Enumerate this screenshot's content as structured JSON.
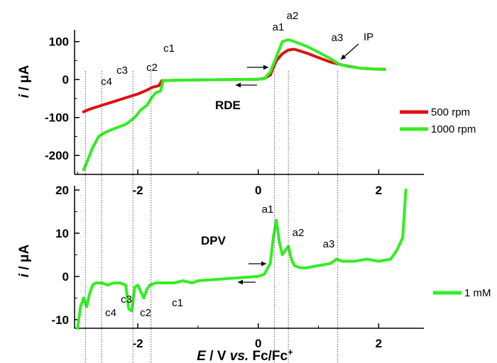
{
  "chart_data": [
    {
      "type": "line",
      "title": "RDE",
      "ylabel_parts": [
        "i",
        " / μA"
      ],
      "xlim": [
        -3.05,
        2.75
      ],
      "ylim": [
        -250,
        120
      ],
      "yticks": [
        100,
        0,
        -100,
        -200
      ],
      "ytick_labels": [
        "100",
        "0",
        "-100",
        "-200"
      ],
      "xticks": [
        -2,
        0,
        2
      ],
      "grid": false,
      "legend_position": "right",
      "series": [
        {
          "name": "500 rpm",
          "color": "#dd1111",
          "x": [
            -2.9,
            -2.8,
            -2.6,
            -2.4,
            -2.2,
            -2.0,
            -1.85,
            -1.75,
            -1.65,
            -1.6,
            -1.4,
            -1.0,
            -0.5,
            0.0,
            0.1,
            0.2,
            0.3,
            0.4,
            0.5,
            0.6,
            0.8,
            1.0,
            1.2,
            1.35,
            1.5,
            1.7,
            1.9,
            2.1
          ],
          "y": [
            -85,
            -78,
            -68,
            -58,
            -48,
            -38,
            -28,
            -20,
            -16,
            -3,
            -2,
            -1,
            0,
            1,
            3,
            12,
            50,
            68,
            78,
            80,
            70,
            58,
            46,
            40,
            35,
            30,
            28,
            27
          ]
        },
        {
          "name": "1000 rpm",
          "color": "#33ee22",
          "x": [
            -2.9,
            -2.85,
            -2.75,
            -2.65,
            -2.55,
            -2.4,
            -2.2,
            -2.05,
            -1.95,
            -1.85,
            -1.78,
            -1.7,
            -1.62,
            -1.58,
            -1.4,
            -1.0,
            -0.5,
            0.0,
            0.1,
            0.2,
            0.3,
            0.4,
            0.5,
            0.6,
            0.8,
            1.0,
            1.2,
            1.35,
            1.5,
            1.7,
            1.9,
            2.1
          ],
          "y": [
            -238,
            -220,
            -180,
            -150,
            -140,
            -130,
            -118,
            -100,
            -80,
            -68,
            -50,
            -35,
            -30,
            -3,
            -2,
            -1,
            0,
            1,
            2,
            20,
            60,
            100,
            105,
            100,
            88,
            72,
            55,
            40,
            34,
            30,
            28,
            26
          ]
        }
      ],
      "annotations": {
        "peaks": [
          {
            "label": "c4",
            "x": -2.87
          },
          {
            "label": "c3",
            "x": -2.6
          },
          {
            "label": "c2",
            "x": -2.08
          },
          {
            "label": "c1",
            "x": -1.78
          },
          {
            "label": "a1",
            "x": 0.27
          },
          {
            "label": "a2",
            "x": 0.5
          },
          {
            "label": "a3",
            "x": 1.32
          }
        ],
        "ip_label": "IP"
      }
    },
    {
      "type": "line",
      "title": "DPV",
      "ylabel_parts": [
        "i",
        " / μA"
      ],
      "xlabel_parts": [
        "E",
        " / V ",
        "vs.",
        " Fc/Fc",
        "+"
      ],
      "xlim": [
        -3.05,
        2.75
      ],
      "ylim": [
        -12,
        20
      ],
      "yticks": [
        20,
        10,
        0,
        -10
      ],
      "ytick_labels": [
        "20",
        "10",
        "0",
        "-10"
      ],
      "xticks": [
        -2,
        0,
        2
      ],
      "xtick_labels": [
        "-2",
        "0",
        "2"
      ],
      "grid": false,
      "legend_position": "right",
      "series": [
        {
          "name": "1 mM",
          "color": "#33ee22",
          "x": [
            -3.0,
            -2.95,
            -2.9,
            -2.85,
            -2.8,
            -2.75,
            -2.7,
            -2.6,
            -2.5,
            -2.4,
            -2.3,
            -2.2,
            -2.15,
            -2.1,
            -2.05,
            -2.0,
            -1.95,
            -1.9,
            -1.85,
            -1.8,
            -1.75,
            -1.7,
            -1.6,
            -1.4,
            -1.25,
            -1.1,
            -1.0,
            -0.5,
            0.0,
            0.1,
            0.2,
            0.25,
            0.3,
            0.35,
            0.4,
            0.45,
            0.5,
            0.55,
            0.6,
            0.7,
            0.8,
            1.0,
            1.2,
            1.3,
            1.4,
            1.6,
            1.8,
            2.0,
            2.2,
            2.3,
            2.4,
            2.45
          ],
          "y": [
            -12,
            -7,
            -5,
            -7,
            -4,
            -2,
            -1.5,
            -1.5,
            -2,
            -1.5,
            -1.5,
            -2,
            -7.5,
            -8,
            -2.5,
            -2,
            -3.5,
            -5,
            -3,
            -2,
            -1.8,
            -1.5,
            -1.5,
            -1.5,
            -1,
            -1.5,
            -1,
            -0.5,
            0,
            0.5,
            3,
            9,
            13,
            8,
            5,
            6,
            7,
            4,
            2.5,
            2,
            2,
            2.5,
            3,
            4,
            3.5,
            3.5,
            4,
            3.5,
            4,
            6,
            9,
            20
          ]
        }
      ],
      "annotations": {
        "peaks": [
          {
            "label": "c4",
            "x": -2.87
          },
          {
            "label": "c3",
            "x": -2.6
          },
          {
            "label": "c2",
            "x": -2.08
          },
          {
            "label": "c1",
            "x": -1.78
          },
          {
            "label": "a1",
            "x": 0.27
          },
          {
            "label": "a2",
            "x": 0.5
          },
          {
            "label": "a3",
            "x": 1.32
          }
        ]
      }
    }
  ]
}
